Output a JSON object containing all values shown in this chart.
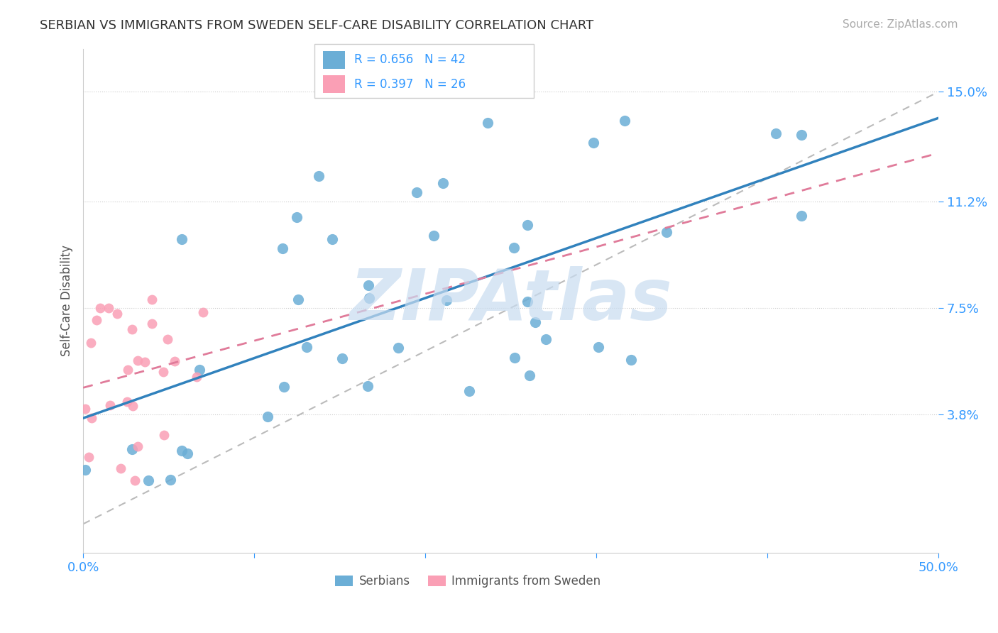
{
  "title": "SERBIAN VS IMMIGRANTS FROM SWEDEN SELF-CARE DISABILITY CORRELATION CHART",
  "source": "Source: ZipAtlas.com",
  "ylabel": "Self-Care Disability",
  "xlim": [
    0.0,
    0.5
  ],
  "ylim": [
    -0.01,
    0.165
  ],
  "yticks": [
    0.038,
    0.075,
    0.112,
    0.15
  ],
  "yticklabels": [
    "3.8%",
    "7.5%",
    "11.2%",
    "15.0%"
  ],
  "blue_color": "#6baed6",
  "pink_color": "#fa9fb5",
  "regression_blue_color": "#3182bd",
  "regression_pink_color": "#e07b9a",
  "R_blue": 0.656,
  "N_blue": 42,
  "R_pink": 0.397,
  "N_pink": 26,
  "watermark": "ZIPAtlas",
  "watermark_color": "#c8dcf0",
  "legend_blue_label": "Serbians",
  "legend_pink_label": "Immigrants from Sweden"
}
